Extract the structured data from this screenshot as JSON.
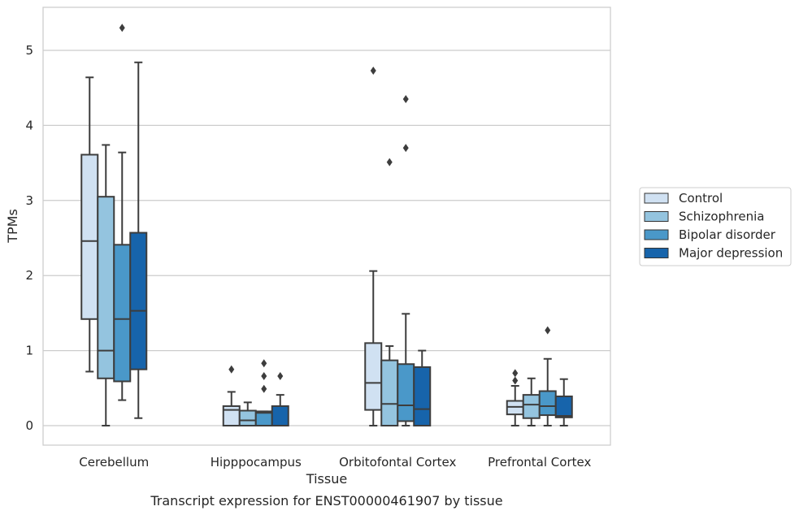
{
  "chart_data": {
    "type": "box",
    "title": "",
    "caption": "Transcript expression for ENST00000461907 by tissue",
    "xlabel": "Tissue",
    "ylabel": "TPMs",
    "ylim": [
      -0.26,
      5.6
    ],
    "yticks": [
      0,
      1,
      2,
      3,
      4,
      5
    ],
    "grid": "horizontal",
    "legend_position": "right",
    "categories": [
      "Cerebellum",
      "Hipppocampus",
      "Orbitofontal Cortex",
      "Prefrontal Cortex"
    ],
    "series": [
      {
        "name": "Control",
        "color": "#d0e1f2",
        "boxes": [
          {
            "whisker_low": 0.72,
            "q1": 1.42,
            "median": 2.46,
            "q3": 3.61,
            "whisker_high": 4.64,
            "outliers": []
          },
          {
            "whisker_low": 0.0,
            "q1": 0.0,
            "median": 0.21,
            "q3": 0.26,
            "whisker_high": 0.45,
            "outliers": [
              0.75
            ]
          },
          {
            "whisker_low": 0.0,
            "q1": 0.21,
            "median": 0.57,
            "q3": 1.1,
            "whisker_high": 2.06,
            "outliers": [
              4.73
            ]
          },
          {
            "whisker_low": 0.0,
            "q1": 0.15,
            "median": 0.25,
            "q3": 0.33,
            "whisker_high": 0.53,
            "outliers": [
              0.6,
              0.7
            ]
          }
        ]
      },
      {
        "name": "Schizophrenia",
        "color": "#94c4df",
        "boxes": [
          {
            "whisker_low": 0.0,
            "q1": 0.63,
            "median": 1.0,
            "q3": 3.05,
            "whisker_high": 3.74,
            "outliers": []
          },
          {
            "whisker_low": 0.0,
            "q1": 0.0,
            "median": 0.07,
            "q3": 0.2,
            "whisker_high": 0.31,
            "outliers": []
          },
          {
            "whisker_low": 0.0,
            "q1": 0.0,
            "median": 0.29,
            "q3": 0.87,
            "whisker_high": 1.06,
            "outliers": [
              3.51
            ]
          },
          {
            "whisker_low": 0.0,
            "q1": 0.1,
            "median": 0.28,
            "q3": 0.41,
            "whisker_high": 0.63,
            "outliers": []
          }
        ]
      },
      {
        "name": "Bipolar disorder",
        "color": "#4a98c9",
        "boxes": [
          {
            "whisker_low": 0.34,
            "q1": 0.59,
            "median": 1.42,
            "q3": 2.41,
            "whisker_high": 3.64,
            "outliers": [
              5.3
            ]
          },
          {
            "whisker_low": 0.0,
            "q1": 0.0,
            "median": 0.17,
            "q3": 0.19,
            "whisker_high": 0.19,
            "outliers": [
              0.49,
              0.66,
              0.83
            ]
          },
          {
            "whisker_low": 0.0,
            "q1": 0.06,
            "median": 0.27,
            "q3": 0.82,
            "whisker_high": 1.49,
            "outliers": [
              3.7,
              4.35
            ]
          },
          {
            "whisker_low": 0.0,
            "q1": 0.14,
            "median": 0.26,
            "q3": 0.46,
            "whisker_high": 0.89,
            "outliers": [
              1.27
            ]
          }
        ]
      },
      {
        "name": "Major depression",
        "color": "#1764ab",
        "boxes": [
          {
            "whisker_low": 0.1,
            "q1": 0.75,
            "median": 1.53,
            "q3": 2.57,
            "whisker_high": 4.84,
            "outliers": []
          },
          {
            "whisker_low": 0.0,
            "q1": 0.0,
            "median": 0.0,
            "q3": 0.26,
            "whisker_high": 0.41,
            "outliers": [
              0.66
            ]
          },
          {
            "whisker_low": 0.0,
            "q1": 0.0,
            "median": 0.22,
            "q3": 0.78,
            "whisker_high": 1.0,
            "outliers": []
          },
          {
            "whisker_low": 0.0,
            "q1": 0.11,
            "median": 0.13,
            "q3": 0.39,
            "whisker_high": 0.62,
            "outliers": []
          }
        ]
      }
    ]
  }
}
